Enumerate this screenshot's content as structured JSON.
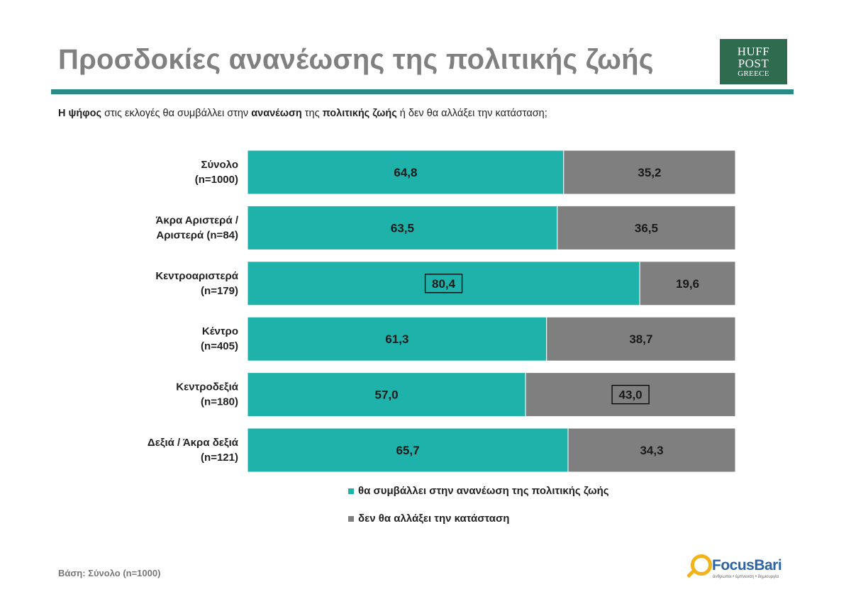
{
  "header": {
    "title": "Προσδοκίες ανανέωσης της πολιτικής ζωής",
    "logo": {
      "line1": "HUFF",
      "line2": "POST",
      "line3": "GREECE"
    }
  },
  "question": {
    "p1": "Η ψήφος",
    "p2": " στις εκλογές  θα συμβάλλει στην ",
    "p3": "ανανέωση",
    "p4": " της ",
    "p5": "πολιτικής ζωής",
    "p6": " ή δεν θα αλλάξει την κατάσταση;"
  },
  "chart_data": {
    "type": "bar",
    "orientation": "horizontal",
    "stacked": true,
    "xlim": [
      0,
      100
    ],
    "categories": [
      [
        "Σύνολο",
        "(n=1000)"
      ],
      [
        "Άκρα Αριστερά /",
        "Αριστερά (n=84)"
      ],
      [
        "Κεντροαριστερά",
        "(n=179)"
      ],
      [
        "Κέντρο",
        "(n=405)"
      ],
      [
        "Κεντροδεξιά",
        "(n=180)"
      ],
      [
        "Δεξιά / Άκρα δεξιά",
        "(n=121)"
      ]
    ],
    "series": [
      {
        "name": "θα συμβάλλει στην ανανέωση της πολιτικής ζωής",
        "color": "#1fb2ab",
        "values": [
          64.8,
          63.5,
          80.4,
          61.3,
          57.0,
          65.7
        ],
        "labels": [
          "64,8",
          "63,5",
          "80,4",
          "61,3",
          "57,0",
          "65,7"
        ]
      },
      {
        "name": "δεν θα αλλάξει την κατάσταση",
        "color": "#7f7f7f",
        "values": [
          35.2,
          36.5,
          19.6,
          38.7,
          43.0,
          34.3
        ],
        "labels": [
          "35,2",
          "36,5",
          "19,6",
          "38,7",
          "43,0",
          "34,3"
        ]
      }
    ],
    "boxed_labels": [
      {
        "series": 0,
        "index": 2
      },
      {
        "series": 1,
        "index": 4
      }
    ]
  },
  "footer": {
    "note": "Βάση: Σύνολο (n=1000)",
    "brand": "FocusBari",
    "tagline": "άνθρωποι • έμπνευση • δημιουργία"
  }
}
